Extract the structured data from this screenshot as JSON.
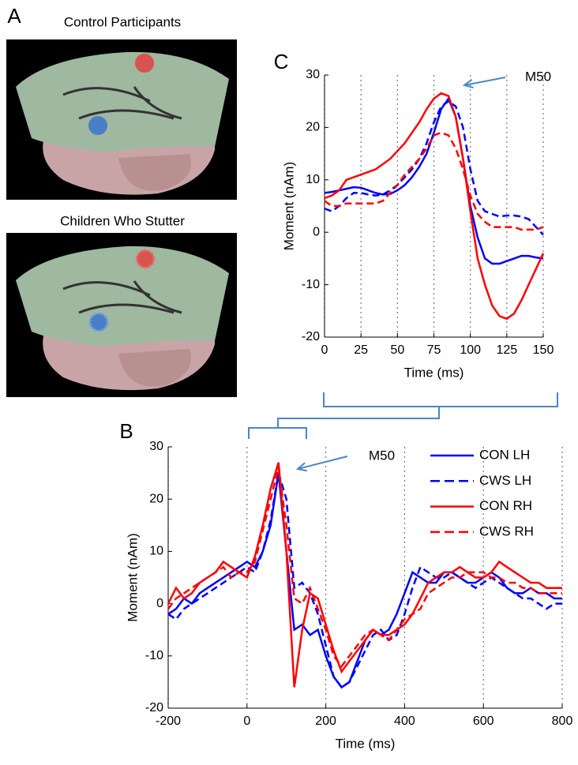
{
  "panel_labels": {
    "a": "A",
    "b": "B",
    "c": "C"
  },
  "brain_panels": [
    "Control Participants",
    "Children Who Stutter"
  ],
  "chart_data": [
    {
      "type": "line",
      "label": "C",
      "annotation": "M50",
      "xlabel": "Time (ms)",
      "ylabel": "Moment (nAm)",
      "x": [
        0,
        5,
        10,
        15,
        20,
        25,
        30,
        35,
        40,
        45,
        50,
        55,
        60,
        65,
        70,
        75,
        80,
        85,
        90,
        95,
        100,
        105,
        110,
        115,
        120,
        125,
        130,
        135,
        140,
        145,
        150
      ],
      "xlim": [
        0,
        150
      ],
      "xticks": [
        0,
        25,
        50,
        75,
        100,
        125,
        150
      ],
      "ylim": [
        -20,
        30
      ],
      "yticks": [
        -20,
        -10,
        0,
        10,
        20,
        30
      ],
      "grid": "x",
      "legend": false,
      "series": [
        {
          "color": "#0000ff",
          "dashed": false,
          "values": [
            7.5,
            7.7,
            8,
            8.3,
            8.6,
            8.5,
            8,
            7.5,
            7.2,
            7.3,
            8,
            9,
            10.5,
            12.5,
            15,
            19,
            23.5,
            25.5,
            22,
            14,
            5,
            -1,
            -5,
            -6,
            -6,
            -5.5,
            -5,
            -4.5,
            -4.5,
            -4.8,
            -5
          ]
        },
        {
          "color": "#0000ff",
          "dashed": true,
          "values": [
            4.5,
            4,
            5,
            6.5,
            7.5,
            7.5,
            7.2,
            7,
            7.2,
            8,
            9,
            10.5,
            12,
            14,
            17,
            21,
            24,
            25,
            24,
            20,
            12,
            6,
            4,
            3.5,
            3,
            3.2,
            3.2,
            3,
            2.5,
            1,
            -0.5
          ]
        },
        {
          "color": "#ff0000",
          "dashed": false,
          "values": [
            6.5,
            7,
            8,
            10,
            10.5,
            11,
            11.5,
            12,
            13,
            14,
            15.5,
            17,
            19,
            21,
            23.5,
            25.5,
            26.5,
            26,
            22,
            14,
            4,
            -5,
            -10,
            -14,
            -16,
            -16.5,
            -15.5,
            -13,
            -10,
            -7,
            -4
          ]
        },
        {
          "color": "#ff0000",
          "dashed": true,
          "values": [
            6,
            5,
            5,
            5.5,
            5.5,
            5.5,
            5.5,
            5.5,
            6,
            7.5,
            9,
            11,
            12.5,
            14,
            16,
            18.5,
            19,
            18.5,
            16,
            12,
            7,
            3.5,
            2,
            1,
            1,
            1,
            1,
            0.5,
            0.5,
            0.5,
            1
          ]
        }
      ]
    },
    {
      "type": "line",
      "label": "B",
      "annotation": "M50",
      "xlabel": "Time (ms)",
      "ylabel": "Moment (nAm)",
      "x": [
        -200,
        -180,
        -160,
        -140,
        -120,
        -100,
        -80,
        -60,
        -40,
        -20,
        0,
        20,
        40,
        60,
        80,
        100,
        120,
        140,
        160,
        180,
        200,
        220,
        240,
        260,
        280,
        300,
        320,
        340,
        360,
        380,
        400,
        420,
        440,
        460,
        480,
        500,
        520,
        540,
        560,
        580,
        600,
        620,
        640,
        660,
        680,
        700,
        720,
        740,
        760,
        780,
        800
      ],
      "xlim": [
        -200,
        800
      ],
      "xticks": [
        -200,
        0,
        200,
        400,
        600,
        800
      ],
      "ylim": [
        -20,
        30
      ],
      "yticks": [
        -20,
        -10,
        0,
        10,
        20,
        30
      ],
      "grid": "x",
      "legend": "upper right",
      "series": [
        {
          "name": "CON LH",
          "color": "#0000ff",
          "dashed": false,
          "values": [
            -2,
            -1,
            1,
            0,
            2,
            3,
            4,
            5,
            6,
            7,
            8,
            7,
            10,
            15,
            25,
            10,
            -5,
            -4,
            -6,
            -5,
            -10,
            -14,
            -16,
            -15,
            -11,
            -7,
            -5,
            -6,
            -5,
            -2,
            2,
            6,
            5,
            4,
            4,
            6,
            6,
            5,
            4,
            4,
            5,
            6,
            5,
            3,
            2,
            2,
            3,
            2,
            2,
            1,
            1
          ]
        },
        {
          "name": "CWS LH",
          "color": "#0000ff",
          "dashed": true,
          "values": [
            -2,
            -3,
            -1,
            0,
            1,
            2,
            3,
            4,
            5,
            6,
            7,
            6,
            10,
            16,
            25,
            20,
            3,
            4,
            2,
            -2,
            -8,
            -14,
            -16,
            -15,
            -12,
            -9,
            -6,
            -5,
            -7,
            -6,
            -2,
            3,
            7,
            6,
            5,
            5,
            6,
            5,
            4,
            3,
            4,
            5,
            4,
            3,
            2,
            1,
            1,
            0,
            -1,
            0,
            0
          ]
        },
        {
          "name": "CON RH",
          "color": "#ff0000",
          "dashed": false,
          "values": [
            0,
            3,
            1,
            2,
            4,
            5,
            6,
            8,
            7,
            6,
            5,
            9,
            15,
            22,
            27,
            10,
            -16,
            -5,
            2,
            1,
            -4,
            -9,
            -13,
            -11,
            -9,
            -7,
            -5,
            -6,
            -6,
            -5,
            -4,
            -2,
            1,
            4,
            5,
            6,
            6,
            7,
            6,
            5,
            5,
            6,
            8,
            7,
            6,
            5,
            4,
            4,
            3,
            3,
            3
          ]
        },
        {
          "name": "CWS RH",
          "color": "#ff0000",
          "dashed": true,
          "values": [
            -1,
            1,
            2,
            3,
            4,
            5,
            6,
            7,
            5,
            6,
            6,
            8,
            14,
            20,
            26,
            15,
            1,
            0,
            3,
            -1,
            -5,
            -10,
            -12,
            -10,
            -8,
            -6,
            -5,
            -6,
            -7,
            -5,
            -3,
            -2,
            -1,
            2,
            3,
            4,
            5,
            5,
            6,
            6,
            6,
            5,
            5,
            4,
            4,
            3,
            3,
            2,
            2,
            2,
            2
          ]
        }
      ]
    }
  ]
}
